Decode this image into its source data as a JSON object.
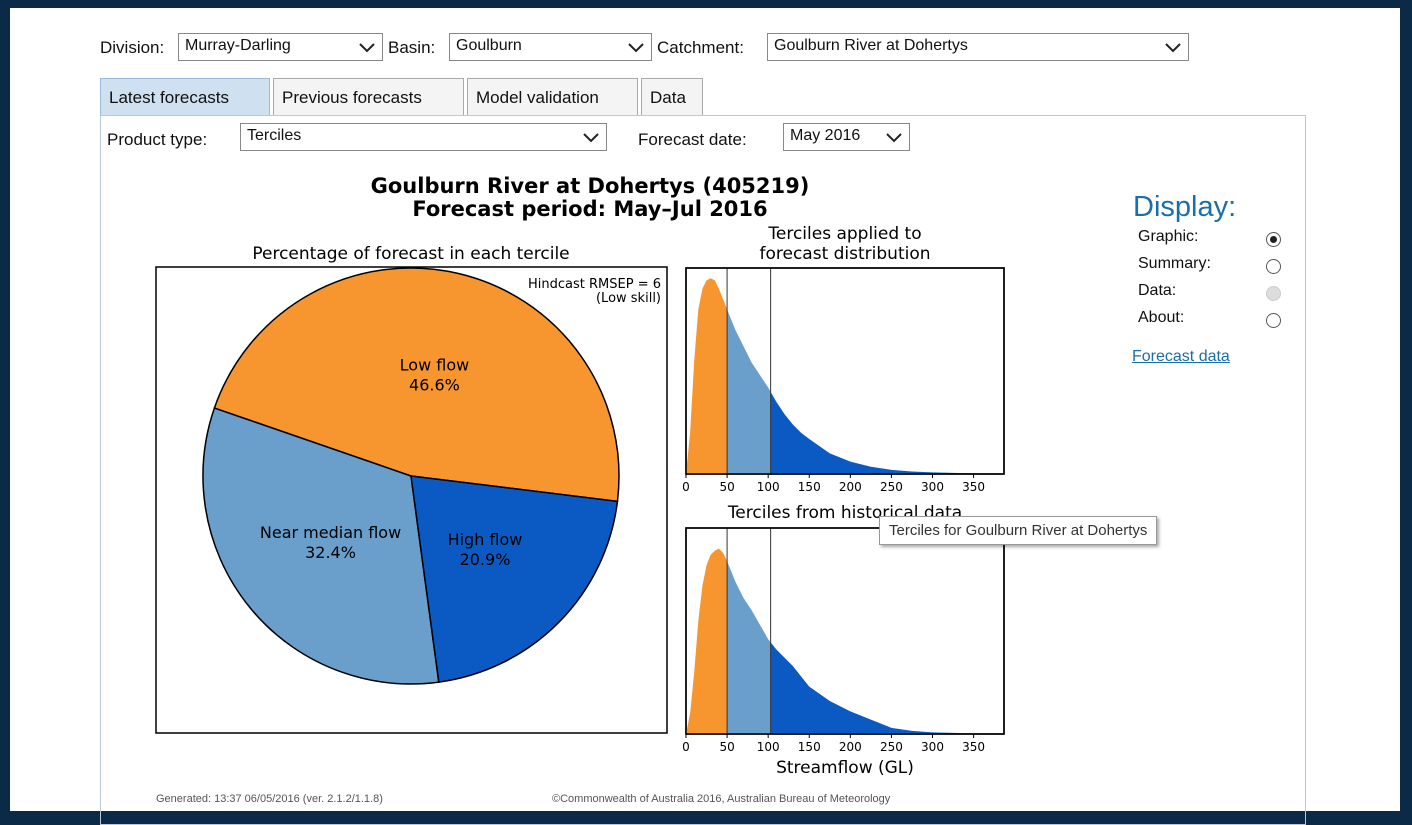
{
  "filters": {
    "division": {
      "label": "Division:",
      "value": "Murray-Darling"
    },
    "basin": {
      "label": "Basin:",
      "value": "Goulburn"
    },
    "catchment": {
      "label": "Catchment:",
      "value": "Goulburn River at Dohertys"
    }
  },
  "tabs": {
    "items": [
      "Latest forecasts",
      "Previous forecasts",
      "Model validation",
      "Data"
    ],
    "active": 0
  },
  "product": {
    "type_label": "Product type:",
    "type_value": "Terciles",
    "date_label": "Forecast date:",
    "date_value": "May 2016"
  },
  "figure": {
    "title": "Goulburn River at Dohertys (405219)",
    "subtitle": "Forecast period: May–Jul 2016",
    "xlabel": "Streamflow (GL)"
  },
  "chart_data": [
    {
      "type": "pie",
      "title": "Percentage of forecast in each tercile",
      "annotation": [
        "Hindcast RMSEP = 6",
        "(Low skill)"
      ],
      "categories": [
        "Low flow",
        "Near median flow",
        "High flow"
      ],
      "values": [
        46.6,
        32.4,
        20.9
      ],
      "value_labels": [
        "46.6%",
        "32.4%",
        "20.9%"
      ],
      "colors": [
        "#f7962f",
        "#6a9ecb",
        "#0b59c2"
      ]
    },
    {
      "type": "area",
      "title": [
        "Terciles applied to",
        "forecast distribution"
      ],
      "x": [
        0,
        5,
        10,
        15,
        20,
        25,
        30,
        35,
        40,
        45,
        50,
        60,
        70,
        80,
        90,
        100,
        110,
        120,
        130,
        140,
        150,
        175,
        200,
        225,
        250,
        275,
        300,
        350,
        387
      ],
      "values": [
        0,
        20,
        55,
        80,
        90,
        94,
        95,
        94,
        90,
        85,
        80,
        70,
        62,
        54,
        48,
        42,
        35,
        29,
        24,
        20,
        17,
        10,
        6,
        3.5,
        2,
        1.2,
        0.8,
        0.3,
        0.2
      ],
      "xlim": [
        0,
        387
      ],
      "ylim": [
        0,
        100
      ],
      "xticks": [
        0,
        50,
        100,
        150,
        200,
        250,
        300,
        350
      ],
      "terciles": [
        50,
        103
      ],
      "colors": [
        "#f7962f",
        "#6a9ecb",
        "#0b59c2"
      ]
    },
    {
      "type": "area",
      "title": [
        "Terciles from historical data"
      ],
      "x": [
        0,
        5,
        10,
        15,
        20,
        25,
        30,
        35,
        40,
        45,
        50,
        60,
        70,
        80,
        90,
        100,
        110,
        120,
        130,
        140,
        150,
        175,
        200,
        225,
        250,
        275,
        300,
        350,
        387
      ],
      "values": [
        0,
        10,
        30,
        55,
        72,
        82,
        87,
        89,
        90,
        88,
        84,
        74,
        66,
        60,
        53,
        46,
        41,
        37,
        33,
        28,
        23,
        16,
        11,
        7,
        3,
        1.5,
        0.8,
        0.3,
        0.2
      ],
      "xlim": [
        0,
        387
      ],
      "ylim": [
        0,
        100
      ],
      "xticks": [
        0,
        50,
        100,
        150,
        200,
        250,
        300,
        350
      ],
      "terciles": [
        50,
        103
      ],
      "colors": [
        "#f7962f",
        "#6a9ecb",
        "#0b59c2"
      ]
    }
  ],
  "tooltip": "Terciles for Goulburn River at Dohertys",
  "display": {
    "title": "Display:",
    "options": [
      "Graphic:",
      "Summary:",
      "Data:",
      "About:"
    ],
    "selected": 0,
    "disabled": [
      2
    ],
    "link": "Forecast data"
  },
  "footer": {
    "generated": "Generated: 13:37 06/05/2016 (ver. 2.1.2/1.1.8)",
    "copyright": "©Commonwealth of Australia 2016, Australian Bureau of Meteorology"
  }
}
